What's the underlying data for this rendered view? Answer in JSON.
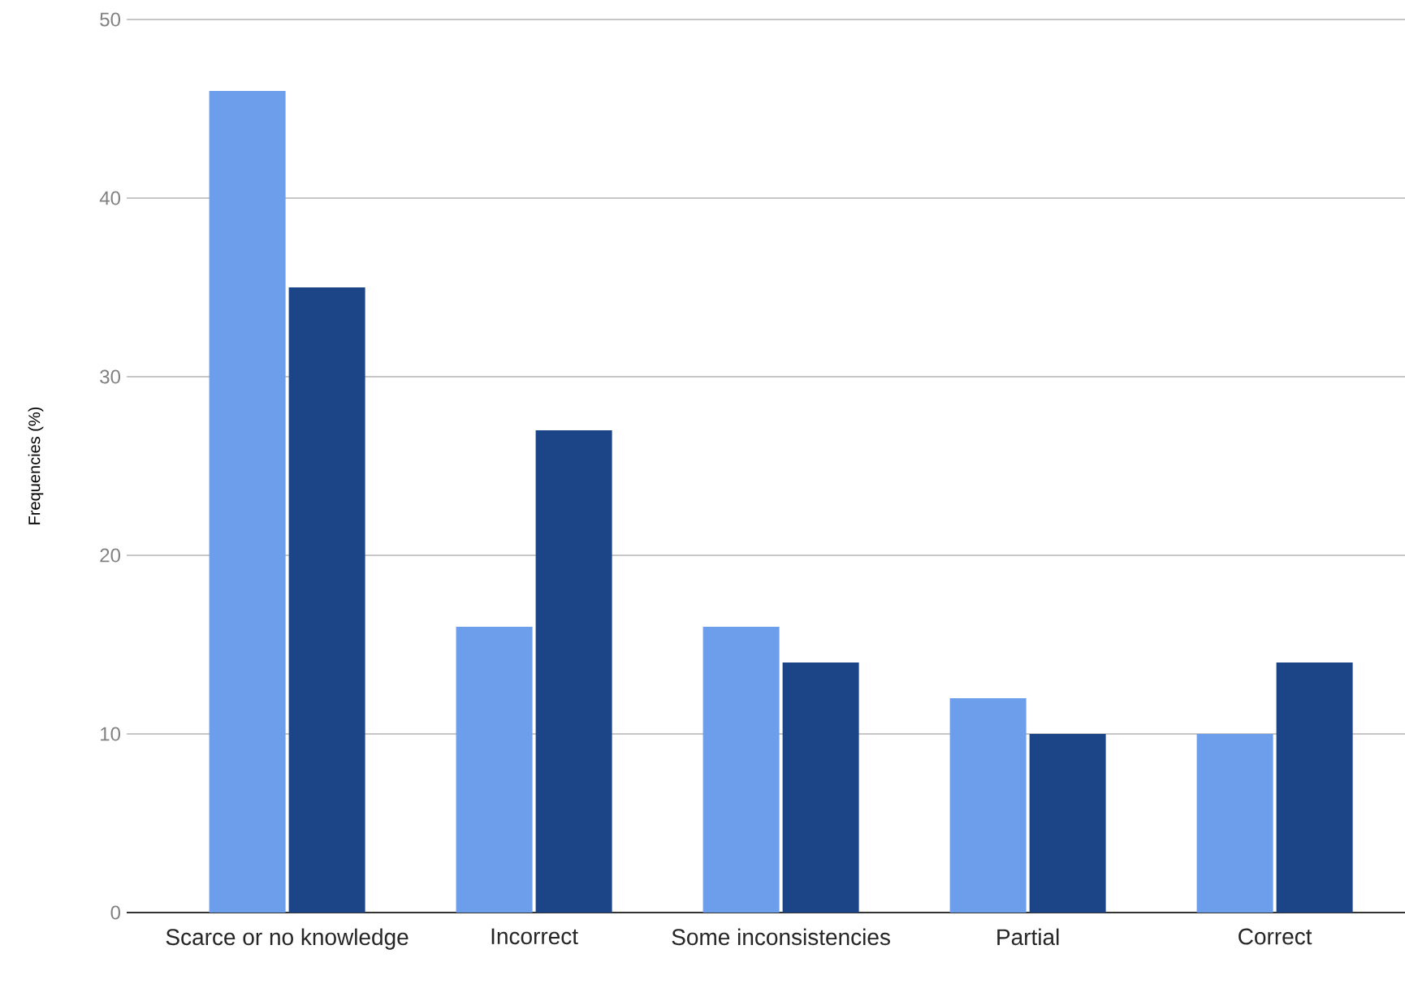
{
  "chart_data": {
    "type": "bar",
    "ylabel": "Frequencies (%)",
    "categories": [
      "Scarce or no knowledge",
      "Incorrect",
      "Some inconsistencies",
      "Partial",
      "Correct"
    ],
    "series": [
      {
        "color": "#6d9eeb",
        "values": [
          46,
          16,
          16,
          12,
          10
        ]
      },
      {
        "color": "#1c4587",
        "values": [
          35,
          27,
          14,
          10,
          14
        ]
      }
    ],
    "ylim": [
      0,
      50
    ],
    "yticks": [
      0,
      10,
      20,
      30,
      40,
      50
    ],
    "grid": "y"
  }
}
